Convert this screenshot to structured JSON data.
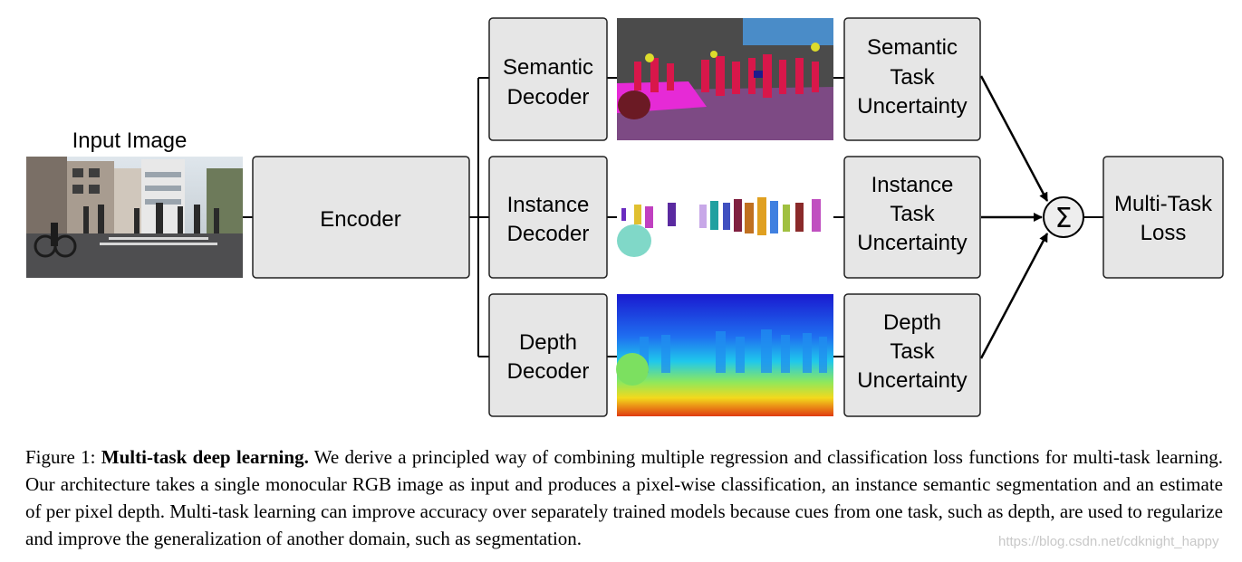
{
  "diagram": {
    "input_label": "Input Image",
    "encoder": "Encoder",
    "decoders": {
      "semantic": [
        "Semantic",
        "Decoder"
      ],
      "instance": [
        "Instance",
        "Decoder"
      ],
      "depth": [
        "Depth",
        "Decoder"
      ]
    },
    "uncertainty": {
      "semantic": [
        "Semantic",
        "Task",
        "Uncertainty"
      ],
      "instance": [
        "Instance",
        "Task",
        "Uncertainty"
      ],
      "depth": [
        "Depth",
        "Task",
        "Uncertainty"
      ]
    },
    "sum_symbol": "Σ",
    "loss": [
      "Multi-Task",
      "Loss"
    ]
  },
  "caption": {
    "prefix": "Figure 1: ",
    "bold": "Multi-task deep learning.",
    "text": " We derive a principled way of combining multiple regression and classification loss functions for multi-task learning. Our architecture takes a single monocular RGB image as input and produces a pixel-wise classification, an instance semantic segmentation and an estimate of per pixel depth. Multi-task learning can improve accuracy over separately trained models because cues from one task, such as depth, are used to regularize and improve the generalization of another domain, such as segmentation."
  },
  "watermark": "https://blog.csdn.net/cdknight_happy",
  "colors": {
    "box_fill": "#e6e6e6",
    "box_stroke": "#222222",
    "semantic_road": "#7d4a84",
    "semantic_person": "#d8174a",
    "semantic_sidewalk": "#e62ad6",
    "semantic_building": "#4b4b4b",
    "semantic_sky": "#4a8cc8",
    "depth_far": "#1a1ad0",
    "depth_near": "#e03a10"
  }
}
